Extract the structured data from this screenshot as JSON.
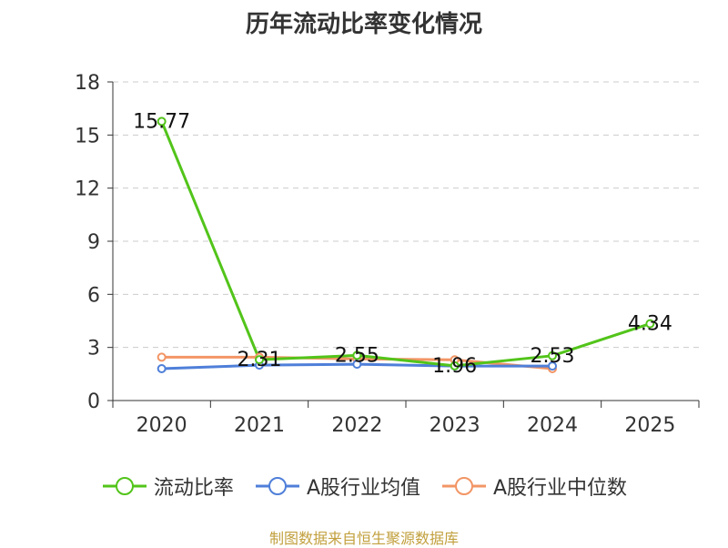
{
  "title": "历年流动比率变化情况",
  "footer": "制图数据来自恒生聚源数据库",
  "chart_data": {
    "type": "line",
    "categories": [
      "2020",
      "2021",
      "2022",
      "2023",
      "2024",
      "2025"
    ],
    "ylim": [
      0,
      18
    ],
    "yticks": [
      0,
      3,
      6,
      9,
      12,
      15,
      18
    ],
    "grid": true,
    "legend_position": "bottom",
    "series": [
      {
        "name": "流动比率",
        "color": "#52c41a",
        "values": [
          15.77,
          2.31,
          2.55,
          1.96,
          2.53,
          4.34
        ],
        "labels": [
          "15.77",
          "2.31",
          "2.55",
          "1.96",
          "2.53",
          "4.34"
        ]
      },
      {
        "name": "A股行业均值",
        "color": "#4f7fd9",
        "values": [
          1.8,
          2.0,
          2.05,
          1.95,
          1.95,
          null
        ]
      },
      {
        "name": "A股行业中位数",
        "color": "#f29565",
        "values": [
          2.45,
          2.45,
          2.35,
          2.3,
          1.8,
          null
        ]
      }
    ]
  }
}
